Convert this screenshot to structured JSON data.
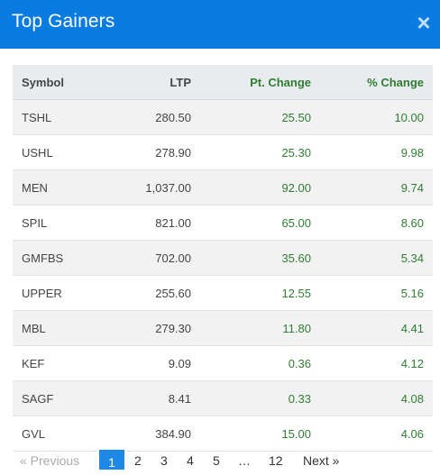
{
  "modal": {
    "title": "Top Gainers",
    "close_label": "×"
  },
  "table": {
    "headers": [
      "Symbol",
      "LTP",
      "Pt. Change",
      "% Change"
    ],
    "rows": [
      [
        "TSHL",
        "280.50",
        "25.50",
        "10.00"
      ],
      [
        "USHL",
        "278.90",
        "25.30",
        "9.98"
      ],
      [
        "MEN",
        "1,037.00",
        "92.00",
        "9.74"
      ],
      [
        "SPIL",
        "821.00",
        "65.00",
        "8.60"
      ],
      [
        "GMFBS",
        "702.00",
        "35.60",
        "5.34"
      ],
      [
        "UPPER",
        "255.60",
        "12.55",
        "5.16"
      ],
      [
        "MBL",
        "279.30",
        "11.80",
        "4.41"
      ],
      [
        "KEF",
        "9.09",
        "0.36",
        "4.12"
      ],
      [
        "SAGF",
        "8.41",
        "0.33",
        "4.08"
      ],
      [
        "GVL",
        "384.90",
        "15.00",
        "4.06"
      ]
    ]
  },
  "pagination": {
    "previous": "« Previous",
    "pages": [
      "1",
      "2",
      "3",
      "4",
      "5"
    ],
    "ellipsis": "…",
    "last": "12",
    "next": "Next »",
    "active_page": "1"
  },
  "colors": {
    "header_bg": "#0a7be0",
    "positive": "#2f7d32",
    "active_page": "#1e88e5"
  }
}
